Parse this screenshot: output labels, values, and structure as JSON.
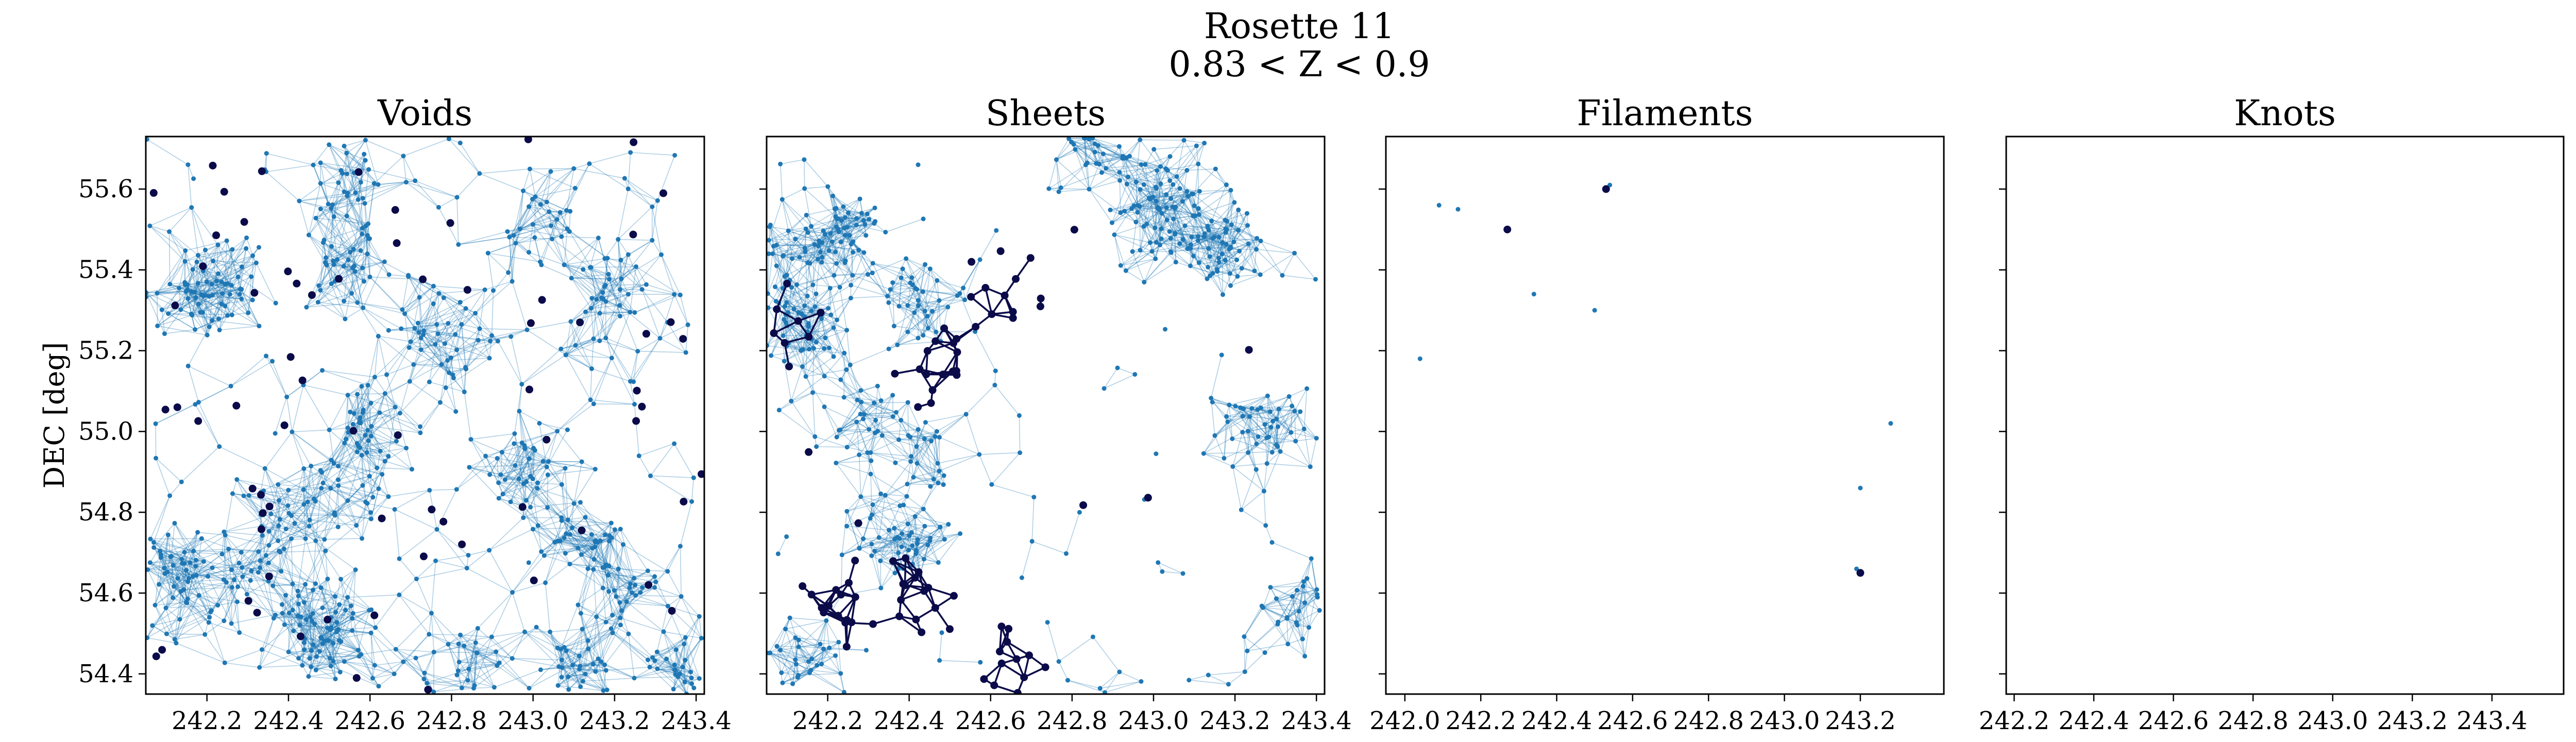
{
  "figure": {
    "title_line1": "Rosette 11",
    "title_line2": "0.83 < Z < 0.9"
  },
  "chart_data": [
    {
      "type": "scatter",
      "title": "Voids",
      "xlabel": "",
      "ylabel": "DEC [deg]",
      "xlim": [
        242.05,
        243.42
      ],
      "ylim": [
        54.35,
        55.73
      ],
      "xticks": [
        "242.2",
        "242.4",
        "242.6",
        "242.8",
        "243.0",
        "243.2",
        "243.4"
      ],
      "yticks": [
        "54.4",
        "54.6",
        "54.8",
        "55.0",
        "55.2",
        "55.4",
        "55.6"
      ],
      "colors": {
        "points": "#1f77b4",
        "edges": "#1f77b4",
        "highlight": "#0b0b4a"
      },
      "points": {
        "seed": 11,
        "count": 900,
        "clustering": 0.75,
        "connect": 0.095
      },
      "highlight": {
        "seed": 101,
        "count": 70,
        "clustering": 0.0,
        "connect": 0
      }
    },
    {
      "type": "scatter",
      "title": "Sheets",
      "xlabel": "",
      "ylabel": "",
      "xlim": [
        242.05,
        243.42
      ],
      "ylim": [
        54.35,
        55.73
      ],
      "xticks": [
        "242.2",
        "242.4",
        "242.6",
        "242.8",
        "243.0",
        "243.2",
        "243.4"
      ],
      "yticks": [
        "54.4",
        "54.6",
        "54.8",
        "55.0",
        "55.2",
        "55.4",
        "55.6"
      ],
      "colors": {
        "points": "#1f77b4",
        "edges": "#1f77b4",
        "highlight": "#0b0b4a"
      },
      "points": {
        "seed": 22,
        "count": 700,
        "clustering": 0.85,
        "connect": 0.08
      },
      "highlight": {
        "seed": 202,
        "count": 95,
        "clustering": 0.9,
        "connect": 0.05
      }
    },
    {
      "type": "scatter",
      "title": "Filaments",
      "xlabel": "",
      "ylabel": "",
      "xlim": [
        241.95,
        243.42
      ],
      "ylim": [
        54.35,
        55.73
      ],
      "xticks": [
        "242.0",
        "242.2",
        "242.4",
        "242.6",
        "242.8",
        "243.0",
        "243.2"
      ],
      "yticks": [
        "54.4",
        "54.6",
        "54.8",
        "55.0",
        "55.2",
        "55.4",
        "55.6"
      ],
      "colors": {
        "points": "#1f77b4",
        "highlight": "#0b0b4a"
      },
      "points_list": [
        [
          242.09,
          55.56
        ],
        [
          242.14,
          55.55
        ],
        [
          242.04,
          55.18
        ],
        [
          242.34,
          55.34
        ],
        [
          242.5,
          55.3
        ],
        [
          242.54,
          55.61
        ],
        [
          243.28,
          55.02
        ],
        [
          243.2,
          54.86
        ],
        [
          243.19,
          54.66
        ]
      ],
      "highlight_list": [
        [
          242.27,
          55.5
        ],
        [
          242.53,
          55.6
        ],
        [
          243.2,
          54.65
        ]
      ]
    },
    {
      "type": "scatter",
      "title": "Knots",
      "xlabel": "",
      "ylabel": "",
      "xlim": [
        242.18,
        243.58
      ],
      "ylim": [
        54.35,
        55.73
      ],
      "xticks": [
        "242.2",
        "242.4",
        "242.6",
        "242.8",
        "243.0",
        "243.2",
        "243.4"
      ],
      "yticks": [
        "54.4",
        "54.6",
        "54.8",
        "55.0",
        "55.2",
        "55.4",
        "55.6"
      ],
      "colors": {
        "points": "#1f77b4",
        "highlight": "#0b0b4a"
      },
      "points_list": [],
      "highlight_list": []
    }
  ]
}
